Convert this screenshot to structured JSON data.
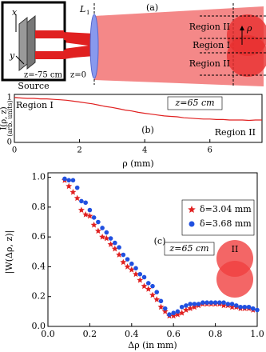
{
  "diagram": {
    "panel_label": "(a)",
    "source_label": "Source",
    "axis_x": "x",
    "axis_y": "y",
    "source_z": "z=-75 cm",
    "lens_z": "z=0",
    "lens_label": "L",
    "lens_subscript": "1",
    "regions": [
      "Region II",
      "Region I",
      "Region II"
    ],
    "rho": "ρ"
  },
  "chart_data": [
    {
      "type": "line",
      "panel_label": "(b)",
      "y_label_lines": [
        "I(ρ, z)",
        "(arb. units)"
      ],
      "x_label": "ρ (mm)",
      "annotations": [
        "Region I",
        "z=65 cm",
        "Region II"
      ],
      "x": [
        0,
        0.2,
        0.4,
        0.6,
        0.8,
        1,
        1.2,
        1.4,
        1.6,
        1.8,
        2,
        2.2,
        2.4,
        2.6,
        2.8,
        3,
        3.2,
        3.4,
        3.6,
        3.8,
        4,
        4.2,
        4.4,
        4.6,
        4.8,
        5,
        5.2,
        5.4,
        5.6,
        5.8,
        6,
        6.2,
        6.4,
        6.6,
        6.8,
        7,
        7.2,
        7.4,
        7.6
      ],
      "series": [
        {
          "color": "#e02020",
          "values": [
            1.0,
            0.99,
            0.98,
            0.98,
            0.97,
            0.97,
            0.96,
            0.95,
            0.94,
            0.92,
            0.9,
            0.88,
            0.86,
            0.83,
            0.8,
            0.78,
            0.75,
            0.72,
            0.7,
            0.67,
            0.65,
            0.63,
            0.61,
            0.59,
            0.58,
            0.57,
            0.55,
            0.54,
            0.53,
            0.52,
            0.52,
            0.51,
            0.51,
            0.5,
            0.5,
            0.5,
            0.49,
            0.5,
            0.5
          ]
        }
      ],
      "xlim": [
        0,
        7.6
      ],
      "xticks": [
        0,
        2,
        4,
        6
      ],
      "ylim": [
        0,
        1.07
      ],
      "yticks": [
        0,
        1
      ]
    },
    {
      "type": "scatter",
      "panel_label": "(c)",
      "y_label": "|W(Δρ, z)|",
      "x_label": "Δρ (in mm)",
      "annotations": [
        "z=65 cm"
      ],
      "inset_label": "II",
      "series": [
        {
          "name": "δ=3.04 mm",
          "color": "#e02020",
          "marker": "star",
          "x": [
            0.08,
            0.1,
            0.12,
            0.14,
            0.16,
            0.18,
            0.2,
            0.22,
            0.24,
            0.26,
            0.28,
            0.3,
            0.32,
            0.34,
            0.36,
            0.38,
            0.4,
            0.42,
            0.44,
            0.46,
            0.48,
            0.5,
            0.52,
            0.54,
            0.56,
            0.58,
            0.6,
            0.62,
            0.64,
            0.66,
            0.68,
            0.7,
            0.72,
            0.74,
            0.76,
            0.78,
            0.8,
            0.82,
            0.84,
            0.86,
            0.88,
            0.9,
            0.92,
            0.94,
            0.96,
            0.98
          ],
          "values": [
            0.98,
            0.94,
            0.9,
            0.86,
            0.78,
            0.75,
            0.74,
            0.68,
            0.64,
            0.6,
            0.59,
            0.55,
            0.52,
            0.48,
            0.43,
            0.4,
            0.38,
            0.35,
            0.31,
            0.27,
            0.25,
            0.21,
            0.18,
            0.13,
            0.1,
            0.07,
            0.07,
            0.08,
            0.09,
            0.11,
            0.12,
            0.13,
            0.14,
            0.15,
            0.15,
            0.15,
            0.15,
            0.15,
            0.14,
            0.14,
            0.13,
            0.13,
            0.12,
            0.12,
            0.12,
            0.11
          ]
        },
        {
          "name": "δ=3.68 mm",
          "color": "#2050e0",
          "marker": "circle",
          "x": [
            0.08,
            0.1,
            0.12,
            0.14,
            0.16,
            0.18,
            0.2,
            0.22,
            0.24,
            0.26,
            0.28,
            0.3,
            0.32,
            0.34,
            0.36,
            0.38,
            0.4,
            0.42,
            0.44,
            0.46,
            0.48,
            0.5,
            0.52,
            0.54,
            0.56,
            0.58,
            0.6,
            0.62,
            0.64,
            0.66,
            0.68,
            0.7,
            0.72,
            0.74,
            0.76,
            0.78,
            0.8,
            0.82,
            0.84,
            0.86,
            0.88,
            0.9,
            0.92,
            0.94,
            0.96,
            0.98,
            1.0
          ],
          "values": [
            0.99,
            0.98,
            0.98,
            0.93,
            0.84,
            0.83,
            0.78,
            0.73,
            0.7,
            0.66,
            0.63,
            0.59,
            0.56,
            0.53,
            0.48,
            0.45,
            0.42,
            0.39,
            0.35,
            0.33,
            0.29,
            0.27,
            0.23,
            0.17,
            0.12,
            0.08,
            0.09,
            0.1,
            0.13,
            0.14,
            0.15,
            0.15,
            0.15,
            0.16,
            0.16,
            0.16,
            0.16,
            0.16,
            0.16,
            0.15,
            0.15,
            0.14,
            0.13,
            0.13,
            0.13,
            0.12,
            0.11
          ]
        }
      ],
      "xlim": [
        0,
        1
      ],
      "xticks": [
        {
          "value": 0,
          "label": "0.0"
        },
        {
          "value": 0.2,
          "label": "0.2"
        },
        {
          "value": 0.4,
          "label": "0.4"
        },
        {
          "value": 0.6,
          "label": "0.6"
        },
        {
          "value": 0.8,
          "label": "0.8"
        },
        {
          "value": 1,
          "label": "1.0"
        }
      ],
      "ylim": [
        0,
        1.03
      ],
      "yticks": [
        {
          "value": 0,
          "label": "0.0"
        },
        {
          "value": 0.2,
          "label": "0.2"
        },
        {
          "value": 0.4,
          "label": "0.4"
        },
        {
          "value": 0.6,
          "label": "0.6"
        },
        {
          "value": 0.8,
          "label": "0.8"
        },
        {
          "value": 1,
          "label": "1.0"
        }
      ],
      "legend": "upper right"
    }
  ]
}
